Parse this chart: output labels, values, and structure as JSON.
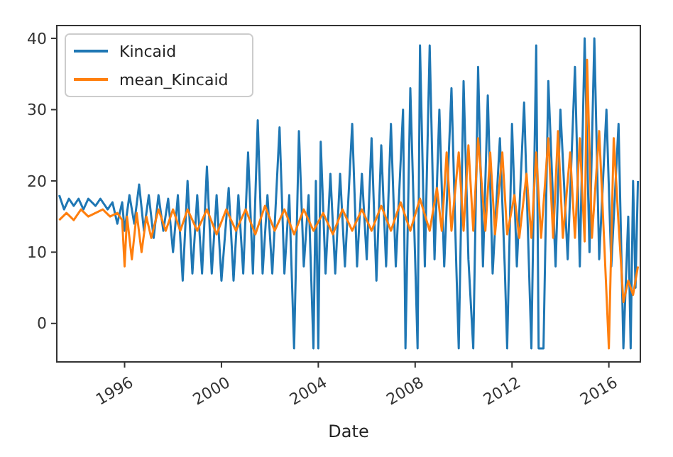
{
  "chart_data": {
    "type": "line",
    "xlabel": "Date",
    "xlim": [
      1993.2,
      2017.3
    ],
    "xticks": [
      1996,
      2000,
      2004,
      2008,
      2012,
      2016
    ],
    "ylim": [
      -5.4,
      41.8
    ],
    "yticks": [
      0,
      10,
      20,
      30,
      40
    ],
    "legend": "top left",
    "grid": false,
    "series": [
      {
        "name": "Kincaid",
        "color": "#1f77b4",
        "x": [
          1993.3,
          1993.5,
          1993.7,
          1993.9,
          1994.1,
          1994.3,
          1994.5,
          1994.8,
          1995.0,
          1995.3,
          1995.5,
          1995.7,
          1995.9,
          1996.0,
          1996.2,
          1996.4,
          1996.6,
          1996.8,
          1997.0,
          1997.2,
          1997.4,
          1997.6,
          1997.8,
          1998.0,
          1998.2,
          1998.4,
          1998.6,
          1998.8,
          1999.0,
          1999.2,
          1999.4,
          1999.6,
          1999.8,
          2000.0,
          2000.3,
          2000.5,
          2000.7,
          2000.9,
          2001.1,
          2001.3,
          2001.5,
          2001.7,
          2001.9,
          2002.1,
          2002.4,
          2002.6,
          2002.8,
          2003.0,
          2003.2,
          2003.4,
          2003.6,
          2003.8,
          2003.9,
          2004.0,
          2004.1,
          2004.3,
          2004.5,
          2004.7,
          2004.9,
          2005.1,
          2005.4,
          2005.6,
          2005.8,
          2006.0,
          2006.2,
          2006.4,
          2006.6,
          2006.8,
          2007.0,
          2007.2,
          2007.5,
          2007.6,
          2007.8,
          2008.0,
          2008.1,
          2008.2,
          2008.4,
          2008.6,
          2008.8,
          2009.0,
          2009.2,
          2009.5,
          2009.7,
          2009.8,
          2010.0,
          2010.2,
          2010.4,
          2010.6,
          2010.8,
          2011.0,
          2011.2,
          2011.5,
          2011.7,
          2011.8,
          2012.0,
          2012.2,
          2012.5,
          2012.8,
          2013.0,
          2013.1,
          2013.3,
          2013.5,
          2013.8,
          2014.0,
          2014.3,
          2014.6,
          2014.8,
          2015.0,
          2015.2,
          2015.4,
          2015.6,
          2015.9,
          2016.1,
          2016.4,
          2016.6,
          2016.8,
          2016.9,
          2017.0,
          2017.1,
          2017.2
        ],
        "values": [
          18,
          16,
          17.5,
          16.5,
          17.5,
          16,
          17.5,
          16.5,
          17.5,
          16,
          17,
          14,
          17,
          13,
          18,
          14,
          19.5,
          13,
          18,
          12,
          18,
          13,
          17.5,
          10,
          18,
          6,
          20,
          7,
          18,
          7,
          22,
          7,
          18,
          6,
          19,
          6,
          18,
          7,
          24,
          7,
          28.5,
          7,
          18,
          7,
          27.5,
          7,
          18,
          -3.5,
          27,
          8,
          18,
          -3.5,
          20,
          -3.5,
          25.5,
          7,
          21,
          7,
          21,
          8,
          28,
          8,
          21,
          9,
          26,
          6,
          25,
          8,
          28,
          8,
          30,
          -3.5,
          33,
          9,
          -3.5,
          39,
          8,
          39,
          9,
          30,
          8,
          33,
          8,
          -3.5,
          34,
          9,
          -3.5,
          36,
          8,
          32,
          7,
          26,
          8,
          -3.5,
          28,
          8,
          31,
          -3.5,
          39,
          -3.5,
          -3.5,
          34,
          8,
          30,
          9,
          36,
          8,
          40,
          10,
          40,
          9,
          30,
          8,
          28,
          -3.5,
          15,
          -3.5,
          20,
          5,
          20
        ]
      },
      {
        "name": "mean_Kincaid",
        "color": "#ff7f0e",
        "x": [
          1993.3,
          1993.6,
          1993.9,
          1994.2,
          1994.5,
          1994.8,
          1995.1,
          1995.4,
          1995.7,
          1995.9,
          1996.0,
          1996.1,
          1996.3,
          1996.5,
          1996.7,
          1996.9,
          1997.1,
          1997.4,
          1997.7,
          1998.0,
          1998.3,
          1998.6,
          1999.0,
          1999.4,
          1999.8,
          2000.2,
          2000.6,
          2001.0,
          2001.4,
          2001.8,
          2002.2,
          2002.6,
          2003.0,
          2003.4,
          2003.8,
          2004.2,
          2004.6,
          2005.0,
          2005.4,
          2005.8,
          2006.2,
          2006.6,
          2007.0,
          2007.4,
          2007.8,
          2008.2,
          2008.6,
          2008.9,
          2009.1,
          2009.3,
          2009.5,
          2009.8,
          2010.0,
          2010.2,
          2010.4,
          2010.6,
          2010.9,
          2011.1,
          2011.3,
          2011.6,
          2011.8,
          2012.1,
          2012.3,
          2012.6,
          2012.8,
          2013.0,
          2013.2,
          2013.5,
          2013.7,
          2013.9,
          2014.1,
          2014.4,
          2014.6,
          2014.8,
          2015.0,
          2015.1,
          2015.3,
          2015.6,
          2015.8,
          2016.0,
          2016.2,
          2016.4,
          2016.6,
          2016.8,
          2017.0,
          2017.2
        ],
        "values": [
          14.5,
          15.5,
          14.5,
          16,
          15,
          15.5,
          16,
          15,
          15.5,
          14.5,
          8,
          15,
          9,
          15.5,
          10,
          15,
          12,
          16,
          13,
          16,
          13,
          16,
          13,
          16,
          12.5,
          16,
          13,
          16,
          12.5,
          16.5,
          13,
          16,
          12.5,
          16,
          13,
          15.5,
          12.5,
          16,
          13,
          16,
          13,
          16.5,
          13,
          17,
          13,
          17.5,
          13,
          19,
          13,
          24,
          13,
          24,
          13,
          25,
          13,
          26,
          13,
          24,
          12.5,
          24,
          12.5,
          18,
          12,
          21,
          12,
          24,
          12,
          26,
          12,
          27,
          12,
          24,
          12,
          26,
          11.5,
          37,
          12,
          27,
          12,
          -3.5,
          26,
          14,
          3,
          6,
          4,
          8
        ]
      }
    ]
  }
}
